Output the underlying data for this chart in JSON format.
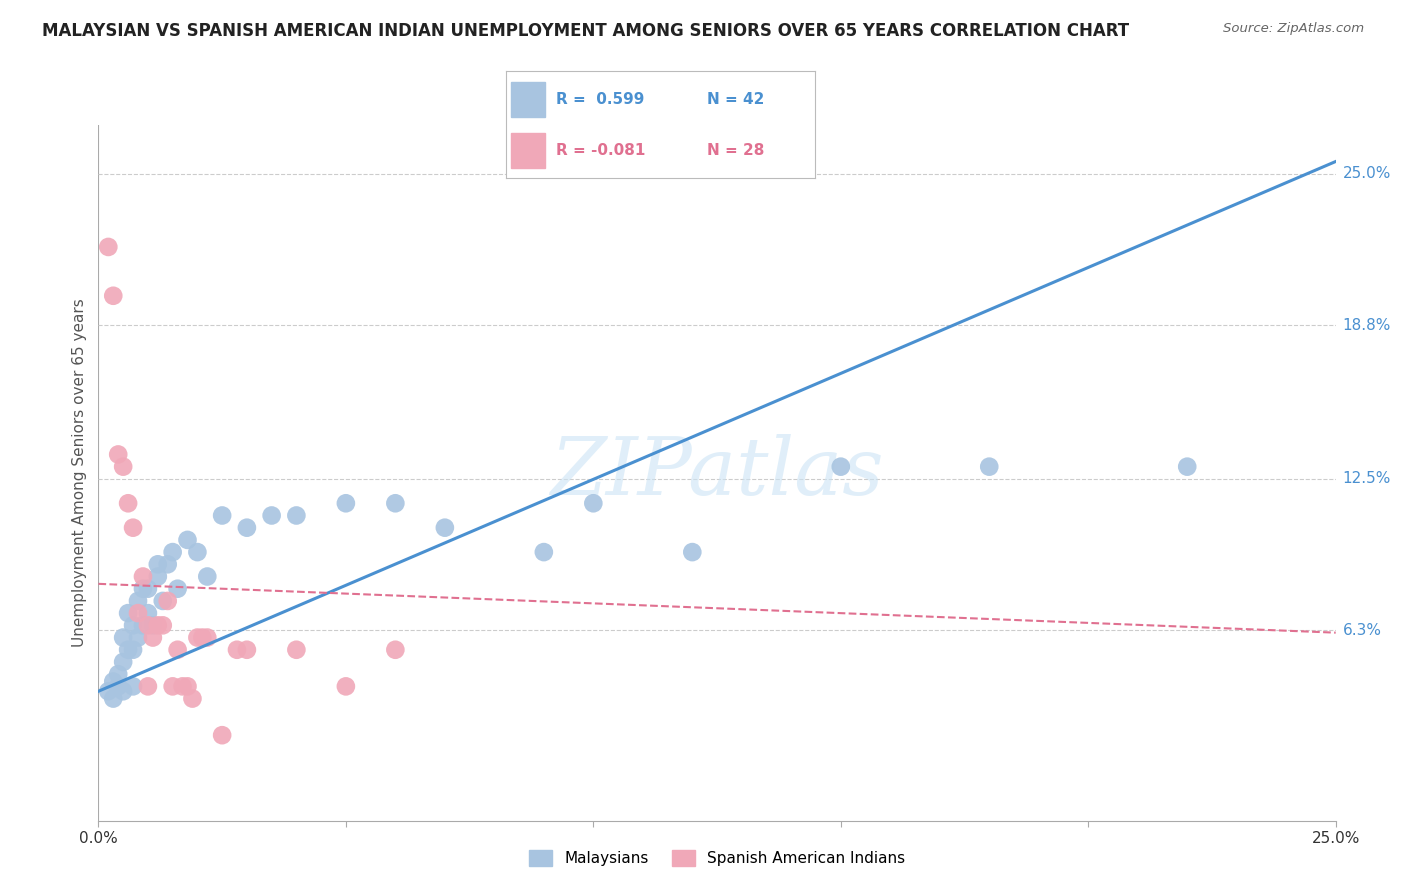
{
  "title": "MALAYSIAN VS SPANISH AMERICAN INDIAN UNEMPLOYMENT AMONG SENIORS OVER 65 YEARS CORRELATION CHART",
  "source": "Source: ZipAtlas.com",
  "ylabel": "Unemployment Among Seniors over 65 years",
  "xlim": [
    0.0,
    0.25
  ],
  "ylim": [
    -0.015,
    0.27
  ],
  "yticks": [
    0.063,
    0.125,
    0.188,
    0.25
  ],
  "ytick_labels": [
    "6.3%",
    "12.5%",
    "18.8%",
    "25.0%"
  ],
  "xticks": [
    0.0,
    0.05,
    0.1,
    0.15,
    0.2,
    0.25
  ],
  "xtick_labels": [
    "0.0%",
    "",
    "",
    "",
    "",
    "25.0%"
  ],
  "blue_R": 0.599,
  "blue_N": 42,
  "pink_R": -0.081,
  "pink_N": 28,
  "blue_color": "#a8c4e0",
  "pink_color": "#f0a8b8",
  "blue_line_color": "#4a90d0",
  "pink_line_color": "#e07090",
  "watermark": "ZIPatlas",
  "blue_scatter_x": [
    0.002,
    0.003,
    0.003,
    0.004,
    0.004,
    0.005,
    0.005,
    0.005,
    0.006,
    0.006,
    0.007,
    0.007,
    0.007,
    0.008,
    0.008,
    0.009,
    0.009,
    0.01,
    0.01,
    0.011,
    0.012,
    0.012,
    0.013,
    0.014,
    0.015,
    0.016,
    0.018,
    0.02,
    0.022,
    0.025,
    0.03,
    0.035,
    0.04,
    0.05,
    0.06,
    0.07,
    0.09,
    0.1,
    0.12,
    0.15,
    0.18,
    0.22
  ],
  "blue_scatter_y": [
    0.038,
    0.042,
    0.035,
    0.04,
    0.045,
    0.038,
    0.05,
    0.06,
    0.055,
    0.07,
    0.04,
    0.055,
    0.065,
    0.06,
    0.075,
    0.065,
    0.08,
    0.07,
    0.08,
    0.065,
    0.085,
    0.09,
    0.075,
    0.09,
    0.095,
    0.08,
    0.1,
    0.095,
    0.085,
    0.11,
    0.105,
    0.11,
    0.11,
    0.115,
    0.115,
    0.105,
    0.095,
    0.115,
    0.095,
    0.13,
    0.13,
    0.13
  ],
  "pink_scatter_x": [
    0.002,
    0.003,
    0.004,
    0.005,
    0.006,
    0.007,
    0.008,
    0.009,
    0.01,
    0.01,
    0.011,
    0.012,
    0.013,
    0.014,
    0.015,
    0.016,
    0.017,
    0.018,
    0.019,
    0.02,
    0.021,
    0.022,
    0.025,
    0.028,
    0.03,
    0.04,
    0.05,
    0.06
  ],
  "pink_scatter_y": [
    0.22,
    0.2,
    0.135,
    0.13,
    0.115,
    0.105,
    0.07,
    0.085,
    0.04,
    0.065,
    0.06,
    0.065,
    0.065,
    0.075,
    0.04,
    0.055,
    0.04,
    0.04,
    0.035,
    0.06,
    0.06,
    0.06,
    0.02,
    0.055,
    0.055,
    0.055,
    0.04,
    0.055
  ],
  "blue_line_x0": 0.0,
  "blue_line_y0": 0.038,
  "blue_line_x1": 0.25,
  "blue_line_y1": 0.255,
  "pink_line_x0": 0.0,
  "pink_line_y0": 0.082,
  "pink_line_x1": 0.25,
  "pink_line_y1": 0.062,
  "background_color": "#ffffff",
  "grid_color": "#cccccc"
}
